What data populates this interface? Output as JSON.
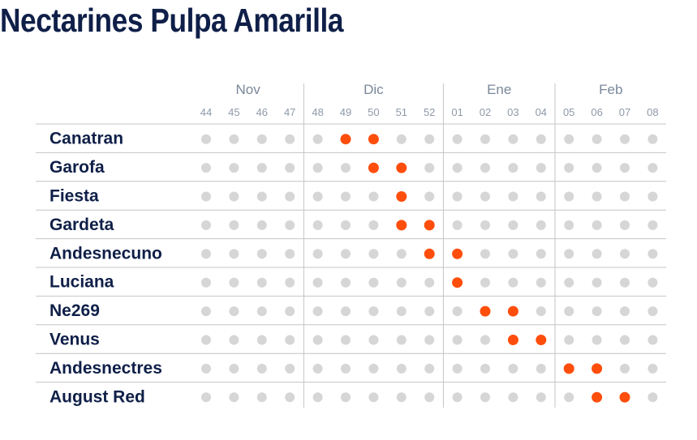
{
  "title": "Nectarines Pulpa Amarilla",
  "colors": {
    "active": "#ff4e0c",
    "inactive": "#d6d6d6",
    "variety_text": "#0f1f48",
    "month_text": "#7a8799",
    "week_text": "#8e99a8",
    "lines": "#c4c4c4"
  },
  "chart_data": {
    "type": "scatter",
    "months": [
      {
        "name": "Nov",
        "weeks": [
          "44",
          "45",
          "46",
          "47"
        ]
      },
      {
        "name": "Dic",
        "weeks": [
          "48",
          "49",
          "50",
          "51",
          "52"
        ]
      },
      {
        "name": "Ene",
        "weeks": [
          "01",
          "02",
          "03",
          "04"
        ]
      },
      {
        "name": "Feb",
        "weeks": [
          "05",
          "06",
          "07",
          "08"
        ]
      }
    ],
    "weeks": [
      "44",
      "45",
      "46",
      "47",
      "48",
      "49",
      "50",
      "51",
      "52",
      "01",
      "02",
      "03",
      "04",
      "05",
      "06",
      "07",
      "08"
    ],
    "varieties": [
      {
        "name": "Canatran",
        "active_weeks": [
          "49",
          "50"
        ]
      },
      {
        "name": "Garofa",
        "active_weeks": [
          "50",
          "51"
        ]
      },
      {
        "name": "Fiesta",
        "active_weeks": [
          "51"
        ]
      },
      {
        "name": "Gardeta",
        "active_weeks": [
          "51",
          "52"
        ]
      },
      {
        "name": "Andesnecuno",
        "active_weeks": [
          "52",
          "01"
        ]
      },
      {
        "name": "Luciana",
        "active_weeks": [
          "01"
        ]
      },
      {
        "name": "Ne269",
        "active_weeks": [
          "02",
          "03"
        ]
      },
      {
        "name": "Venus",
        "active_weeks": [
          "03",
          "04"
        ]
      },
      {
        "name": "Andesnectres",
        "active_weeks": [
          "05",
          "06"
        ]
      },
      {
        "name": "August Red",
        "active_weeks": [
          "06",
          "07"
        ]
      }
    ]
  }
}
